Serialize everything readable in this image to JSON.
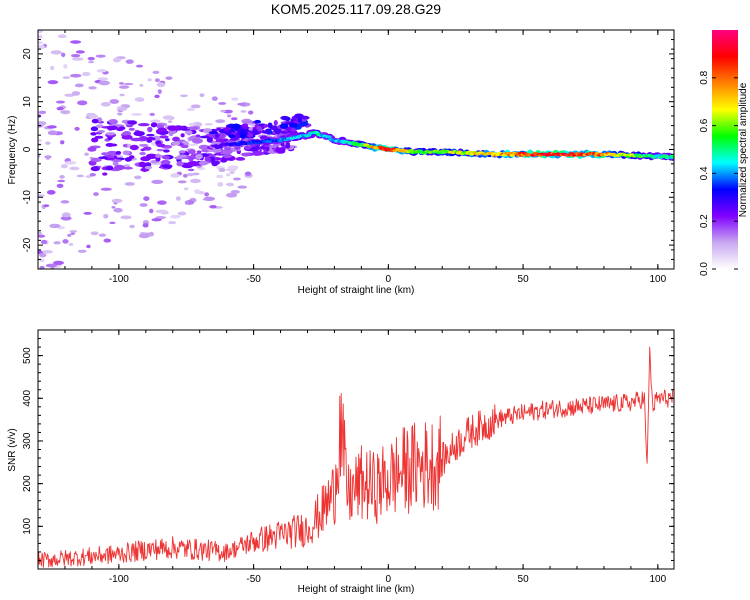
{
  "title": "KOM5.2025.117.09.28.G29",
  "chart_data": [
    {
      "type": "heatmap",
      "xlabel": "Height of straight line (km)",
      "ylabel": "Frequency (Hz)",
      "xlim": [
        -130,
        106
      ],
      "ylim": [
        -25,
        25
      ],
      "x_ticks": [
        -100,
        -50,
        0,
        50,
        100
      ],
      "y_ticks": [
        -20,
        -10,
        0,
        10,
        20
      ],
      "colorbar": {
        "label": "Normalized spectral amplitude",
        "range": [
          0,
          1
        ],
        "ticks": [
          "0.0",
          "0.2",
          "0.4",
          "0.6",
          "0.8"
        ],
        "tick_values": [
          0,
          0.2,
          0.4,
          0.6,
          0.8
        ],
        "colors": [
          "#ffffff",
          "#c8a8f0",
          "#8000ff",
          "#0000ff",
          "#00ffff",
          "#00ff00",
          "#ffff00",
          "#ff8000",
          "#ff0000",
          "#ff0080"
        ]
      },
      "ridge": {
        "note_x": [
          -65,
          -60,
          -50,
          -40,
          -30,
          -27,
          -20,
          -10,
          0,
          10,
          20,
          40,
          60,
          80,
          100,
          106
        ],
        "frequency": [
          0.5,
          1.0,
          1.5,
          2.0,
          3.0,
          3.5,
          2.0,
          1.0,
          0.0,
          -0.5,
          -0.5,
          -1.0,
          -1.0,
          -1.0,
          -1.5,
          -1.5
        ],
        "amplitude": [
          0.25,
          0.3,
          0.35,
          0.4,
          0.45,
          0.5,
          0.4,
          0.55,
          0.95,
          0.55,
          0.6,
          0.75,
          0.9,
          0.8,
          0.45,
          0.5
        ]
      }
    },
    {
      "type": "line",
      "xlabel": "Height of straight line (km)",
      "ylabel": "SNR (v/v)",
      "xlim": [
        -130,
        106
      ],
      "ylim": [
        0,
        560
      ],
      "x_ticks": [
        -100,
        -50,
        0,
        50,
        100
      ],
      "y_ticks": [
        100,
        200,
        300,
        400,
        500
      ],
      "color": "#ee3333",
      "series": [
        {
          "x": [
            -130,
            -120,
            -110,
            -100,
            -90,
            -80,
            -70,
            -60,
            -50,
            -40,
            -30,
            -25,
            -20,
            -18,
            -15,
            -10,
            -5,
            0,
            5,
            10,
            15,
            20,
            25,
            30,
            40,
            50,
            60,
            70,
            80,
            90,
            95,
            96,
            97,
            98,
            100,
            106
          ],
          "y": [
            20,
            25,
            30,
            35,
            45,
            50,
            45,
            40,
            65,
            80,
            95,
            130,
            180,
            340,
            170,
            200,
            190,
            210,
            230,
            240,
            245,
            255,
            290,
            320,
            350,
            365,
            375,
            380,
            385,
            390,
            400,
            230,
            520,
            380,
            400,
            400
          ]
        }
      ]
    }
  ]
}
